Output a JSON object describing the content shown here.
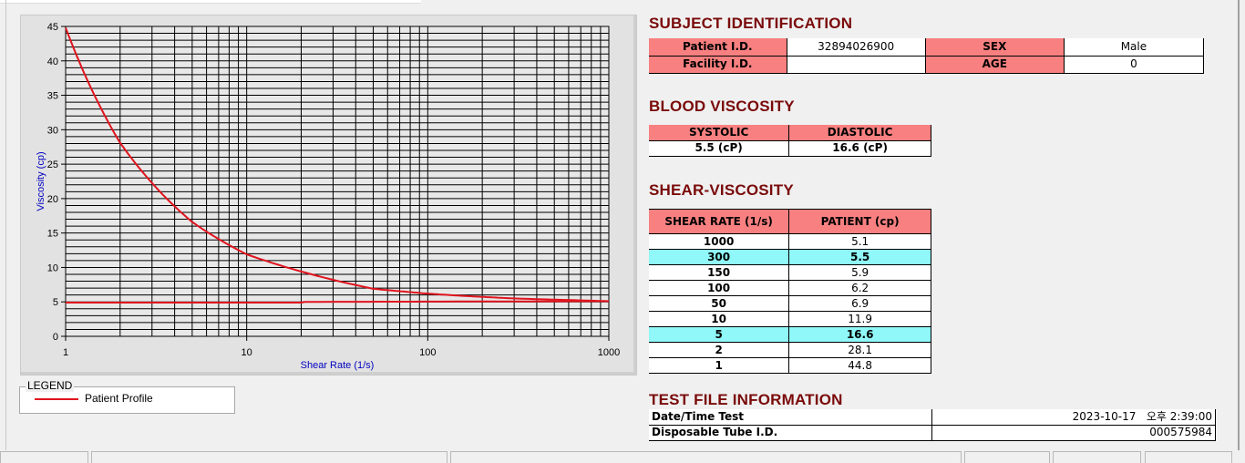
{
  "chart_data": {
    "type": "line",
    "title": "",
    "xlabel": "Shear Rate (1/s)",
    "ylabel": "Viscosity (cp)",
    "xscale": "log",
    "xlim": [
      1,
      1000
    ],
    "ylim": [
      0,
      45
    ],
    "x_ticks": [
      "1",
      "10",
      "100",
      "1000"
    ],
    "y_ticks": [
      "0",
      "5",
      "10",
      "15",
      "20",
      "25",
      "30",
      "35",
      "40",
      "45"
    ],
    "grid": true,
    "legend": {
      "title": "LEGEND",
      "placement": "bottom-left"
    },
    "colors": {
      "series": "#e0141e",
      "plot_bg": "#e8e8e8",
      "axis_label": "#0000c0"
    },
    "series": [
      {
        "name": "Patient Profile",
        "x": [
          1,
          2,
          5,
          10,
          50,
          100,
          150,
          300,
          1000
        ],
        "y": [
          44.8,
          28.1,
          16.6,
          11.9,
          6.9,
          6.2,
          5.9,
          5.5,
          5.1
        ]
      },
      {
        "x": [
          1,
          20,
          21,
          1000
        ],
        "y": [
          4.9,
          4.9,
          5.0,
          5.1
        ]
      }
    ]
  },
  "subject": {
    "heading": "SUBJECT IDENTIFICATION",
    "patient_id_label": "Patient I.D.",
    "patient_id": "32894026900",
    "sex_label": "SEX",
    "sex": "Male",
    "facility_id_label": "Facility I.D.",
    "facility_id": "",
    "age_label": "AGE",
    "age": "0"
  },
  "blood": {
    "heading": "BLOOD VISCOSITY",
    "systolic_label": "SYSTOLIC",
    "diastolic_label": "DIASTOLIC",
    "systolic": "5.5 (cP)",
    "diastolic": "16.6 (cP)"
  },
  "shear": {
    "heading": "SHEAR-VISCOSITY",
    "col1": "SHEAR RATE (1/s)",
    "col2": "PATIENT (cp)",
    "rows": [
      {
        "rate": "1000",
        "value": "5.1",
        "highlight": false
      },
      {
        "rate": "300",
        "value": "5.5",
        "highlight": true
      },
      {
        "rate": "150",
        "value": "5.9",
        "highlight": false
      },
      {
        "rate": "100",
        "value": "6.2",
        "highlight": false
      },
      {
        "rate": "50",
        "value": "6.9",
        "highlight": false
      },
      {
        "rate": "10",
        "value": "11.9",
        "highlight": false
      },
      {
        "rate": "5",
        "value": "16.6",
        "highlight": true
      },
      {
        "rate": "2",
        "value": "28.1",
        "highlight": false
      },
      {
        "rate": "1",
        "value": "44.8",
        "highlight": false
      }
    ],
    "highlight_color": "#90f8f8"
  },
  "testfile": {
    "heading": "TEST FILE INFORMATION",
    "datetime_label": "Date/Time Test",
    "datetime": "2023-10-17   오후 2:39:00",
    "tube_label": "Disposable Tube I.D.",
    "tube": "000575984"
  }
}
